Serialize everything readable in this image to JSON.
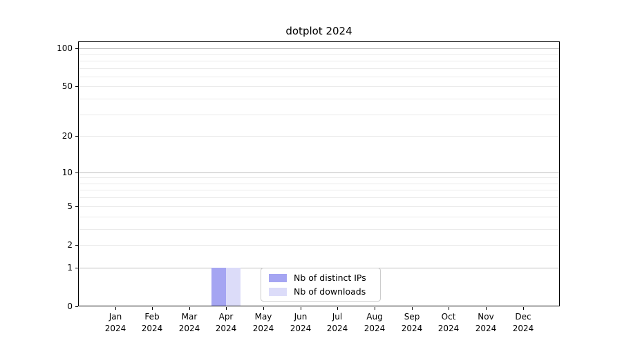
{
  "chart_data": {
    "type": "bar",
    "title": "dotplot 2024",
    "categories": [
      "Jan 2024",
      "Feb 2024",
      "Mar 2024",
      "Apr 2024",
      "May 2024",
      "Jun 2024",
      "Jul 2024",
      "Aug 2024",
      "Sep 2024",
      "Oct 2024",
      "Nov 2024",
      "Dec 2024"
    ],
    "series": [
      {
        "name": "Nb of distinct IPs",
        "color": "#a5a5f2",
        "values": [
          0,
          0,
          0,
          1,
          0,
          0,
          0,
          0,
          0,
          0,
          0,
          0
        ]
      },
      {
        "name": "Nb of downloads",
        "color": "#dcdcf9",
        "values": [
          0,
          0,
          0,
          1,
          0,
          0,
          0,
          0,
          0,
          0,
          0,
          0
        ]
      }
    ],
    "xlabel": "",
    "ylabel": "",
    "ylim": [
      0,
      100
    ],
    "yscale": "log-like (position proportional to log10(1+value))",
    "ytick_values": [
      0,
      1,
      2,
      5,
      10,
      20,
      50,
      100
    ],
    "ytick_labels": [
      "0",
      "1",
      "2",
      "5",
      "10",
      "20",
      "50",
      "100"
    ],
    "major_gridline_values": [
      1,
      10,
      100
    ],
    "minor_gridline_values": [
      2,
      3,
      4,
      5,
      6,
      7,
      8,
      9,
      20,
      30,
      40,
      50,
      60,
      70,
      80,
      90
    ],
    "grid": true,
    "legend": {
      "position": "lower center",
      "items": [
        "Nb of distinct IPs",
        "Nb of downloads"
      ]
    }
  }
}
